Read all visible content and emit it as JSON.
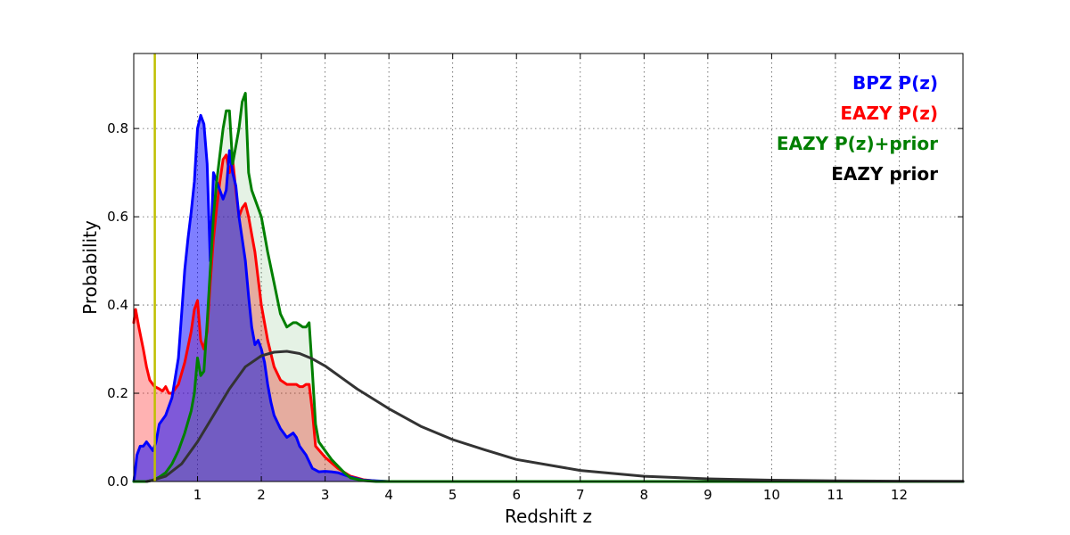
{
  "chart_data": {
    "type": "area",
    "title": "",
    "xlabel": "Redshift z",
    "ylabel": "Probability",
    "xlim": [
      0,
      13
    ],
    "ylim": [
      0,
      0.97
    ],
    "grid": true,
    "legend_position": "top-right",
    "xticks": [
      {
        "value": 1,
        "label": "1"
      },
      {
        "value": 2,
        "label": "2"
      },
      {
        "value": 3,
        "label": "3"
      },
      {
        "value": 4,
        "label": "4"
      },
      {
        "value": 5,
        "label": "5"
      },
      {
        "value": 6,
        "label": "6"
      },
      {
        "value": 7,
        "label": "7"
      },
      {
        "value": 8,
        "label": "8"
      },
      {
        "value": 9,
        "label": "9"
      },
      {
        "value": 10,
        "label": "10"
      },
      {
        "value": 11,
        "label": "11"
      },
      {
        "value": 12,
        "label": "12"
      }
    ],
    "yticks": [
      {
        "value": 0.0,
        "label": "0.0"
      },
      {
        "value": 0.2,
        "label": "0.2"
      },
      {
        "value": 0.4,
        "label": "0.4"
      },
      {
        "value": 0.6,
        "label": "0.6"
      },
      {
        "value": 0.8,
        "label": "0.8"
      }
    ],
    "reference_line": {
      "x": 0.33,
      "color": "#bfbf00"
    },
    "series": [
      {
        "name": "EAZY P(z)",
        "color": "#ff0000",
        "fill": "#ff0000",
        "fill_opacity": 0.3,
        "x": [
          0,
          0.03,
          0.08,
          0.15,
          0.2,
          0.25,
          0.3,
          0.33,
          0.4,
          0.45,
          0.5,
          0.55,
          0.6,
          0.7,
          0.8,
          0.9,
          0.95,
          1.0,
          1.05,
          1.1,
          1.15,
          1.2,
          1.25,
          1.3,
          1.35,
          1.4,
          1.45,
          1.5,
          1.55,
          1.6,
          1.65,
          1.7,
          1.75,
          1.8,
          1.85,
          1.9,
          2.0,
          2.1,
          2.2,
          2.3,
          2.4,
          2.5,
          2.55,
          2.6,
          2.65,
          2.7,
          2.75,
          2.8,
          2.85,
          3.0,
          3.2,
          3.4,
          3.6,
          3.8,
          4.0,
          5.0,
          8.0,
          13.0
        ],
        "y": [
          0.36,
          0.39,
          0.35,
          0.3,
          0.26,
          0.23,
          0.22,
          0.215,
          0.21,
          0.205,
          0.215,
          0.2,
          0.2,
          0.22,
          0.27,
          0.34,
          0.39,
          0.41,
          0.32,
          0.3,
          0.34,
          0.45,
          0.55,
          0.62,
          0.68,
          0.73,
          0.74,
          0.7,
          0.73,
          0.66,
          0.6,
          0.62,
          0.63,
          0.6,
          0.56,
          0.52,
          0.4,
          0.32,
          0.26,
          0.23,
          0.22,
          0.22,
          0.22,
          0.215,
          0.215,
          0.22,
          0.22,
          0.16,
          0.08,
          0.055,
          0.03,
          0.012,
          0.004,
          0.001,
          0.0,
          0.0,
          0.0,
          0.0
        ]
      },
      {
        "name": "BPZ P(z)",
        "color": "#0000ff",
        "fill": "#0000ff",
        "fill_opacity": 0.5,
        "x": [
          0,
          0.02,
          0.05,
          0.1,
          0.15,
          0.2,
          0.25,
          0.3,
          0.35,
          0.4,
          0.5,
          0.6,
          0.7,
          0.75,
          0.8,
          0.85,
          0.9,
          0.95,
          1.0,
          1.05,
          1.1,
          1.15,
          1.2,
          1.25,
          1.3,
          1.35,
          1.4,
          1.45,
          1.5,
          1.55,
          1.6,
          1.65,
          1.7,
          1.75,
          1.8,
          1.85,
          1.9,
          1.95,
          2.0,
          2.05,
          2.1,
          2.15,
          2.2,
          2.3,
          2.4,
          2.5,
          2.55,
          2.6,
          2.7,
          2.8,
          2.9,
          3.0,
          3.1,
          3.2,
          3.4,
          3.6,
          4.0,
          6.0,
          10.0,
          13.0
        ],
        "y": [
          0.0,
          0.02,
          0.06,
          0.08,
          0.08,
          0.09,
          0.08,
          0.07,
          0.09,
          0.13,
          0.15,
          0.19,
          0.28,
          0.38,
          0.48,
          0.55,
          0.61,
          0.68,
          0.8,
          0.83,
          0.81,
          0.72,
          0.5,
          0.7,
          0.68,
          0.66,
          0.64,
          0.66,
          0.75,
          0.7,
          0.67,
          0.6,
          0.55,
          0.5,
          0.42,
          0.35,
          0.31,
          0.32,
          0.3,
          0.27,
          0.22,
          0.18,
          0.15,
          0.12,
          0.1,
          0.11,
          0.1,
          0.08,
          0.06,
          0.03,
          0.022,
          0.023,
          0.022,
          0.02,
          0.01,
          0.003,
          0.0,
          0.0,
          0.0,
          0.0
        ]
      },
      {
        "name": "EAZY P(z)+prior",
        "color": "#007f00",
        "fill": "#007f00",
        "fill_opacity": 0.1,
        "x": [
          0,
          0.2,
          0.3,
          0.4,
          0.5,
          0.6,
          0.7,
          0.8,
          0.9,
          0.95,
          1.0,
          1.05,
          1.1,
          1.15,
          1.2,
          1.25,
          1.3,
          1.35,
          1.4,
          1.45,
          1.5,
          1.55,
          1.6,
          1.65,
          1.7,
          1.75,
          1.8,
          1.85,
          1.9,
          1.95,
          2.0,
          2.1,
          2.2,
          2.3,
          2.4,
          2.5,
          2.55,
          2.6,
          2.65,
          2.7,
          2.75,
          2.8,
          2.85,
          2.9,
          3.0,
          3.1,
          3.2,
          3.3,
          3.4,
          3.6,
          3.8,
          4.0,
          5.0,
          13.0
        ],
        "y": [
          0.0,
          0.0,
          0.003,
          0.01,
          0.02,
          0.04,
          0.07,
          0.11,
          0.16,
          0.2,
          0.28,
          0.24,
          0.25,
          0.36,
          0.48,
          0.6,
          0.68,
          0.74,
          0.8,
          0.84,
          0.84,
          0.72,
          0.76,
          0.8,
          0.86,
          0.88,
          0.7,
          0.66,
          0.64,
          0.62,
          0.6,
          0.52,
          0.45,
          0.38,
          0.35,
          0.36,
          0.36,
          0.355,
          0.35,
          0.35,
          0.36,
          0.25,
          0.13,
          0.09,
          0.07,
          0.05,
          0.035,
          0.02,
          0.008,
          0.002,
          0.0,
          0.0,
          0.0,
          0.0
        ]
      },
      {
        "name": "EAZY prior",
        "color": "#333333",
        "fill": null,
        "fill_opacity": 0,
        "x": [
          0.2,
          0.3,
          0.5,
          0.75,
          1.0,
          1.25,
          1.5,
          1.75,
          2.0,
          2.2,
          2.4,
          2.6,
          2.8,
          3.0,
          3.5,
          4.0,
          4.5,
          5.0,
          5.5,
          6.0,
          7.0,
          8.0,
          9.0,
          10.0,
          11.0,
          12.0,
          13.0
        ],
        "y": [
          0.0,
          0.003,
          0.012,
          0.04,
          0.09,
          0.15,
          0.21,
          0.26,
          0.285,
          0.293,
          0.295,
          0.29,
          0.278,
          0.262,
          0.21,
          0.165,
          0.125,
          0.095,
          0.072,
          0.05,
          0.025,
          0.012,
          0.006,
          0.003,
          0.0015,
          0.0008,
          0.0004
        ]
      }
    ],
    "legend_order": [
      "BPZ P(z)",
      "EAZY P(z)",
      "EAZY P(z)+prior",
      "EAZY prior"
    ],
    "legend_colors": [
      "#0000ff",
      "#ff0000",
      "#007f00",
      "#000000"
    ]
  }
}
